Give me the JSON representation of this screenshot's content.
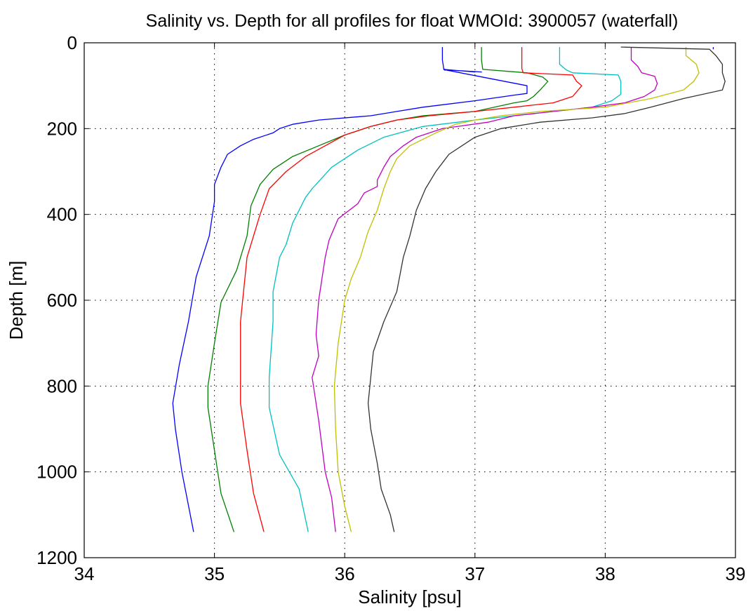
{
  "chart_data": {
    "type": "line",
    "title": "Salinity vs. Depth for all profiles for float WMOId: 3900057 (waterfall)",
    "xlabel": "Salinity [psu]",
    "ylabel": "Depth [m]",
    "xlim": [
      34,
      39
    ],
    "ylim": [
      0,
      1200
    ],
    "y_reversed": true,
    "grid": true,
    "xticks": [
      34,
      35,
      36,
      37,
      38,
      39
    ],
    "yticks": [
      0,
      200,
      400,
      600,
      800,
      1000,
      1200
    ],
    "series": [
      {
        "color": "#0000ff",
        "points": [
          [
            36.75,
            10
          ],
          [
            36.75,
            40
          ],
          [
            36.76,
            60
          ],
          [
            36.76,
            60
          ],
          [
            36.76,
            60
          ],
          [
            36.76,
            60
          ],
          [
            36.76,
            62
          ],
          [
            36.76,
            62
          ],
          [
            36.76,
            62
          ],
          [
            36.76,
            62
          ],
          [
            36.77,
            64
          ],
          [
            36.77,
            64
          ],
          [
            36.76,
            60
          ],
          [
            36.76,
            60
          ],
          [
            36.76,
            62
          ],
          [
            37.0,
            68
          ],
          [
            37.0,
            67
          ],
          [
            37.05,
            68
          ],
          [
            37.05,
            68
          ],
          [
            37.05,
            68
          ],
          [
            36.77,
            63
          ],
          [
            37.4,
            100
          ],
          [
            37.4,
            118
          ],
          [
            37.3,
            122
          ],
          [
            37.0,
            135
          ],
          [
            36.6,
            150
          ],
          [
            36.4,
            160
          ],
          [
            36.2,
            170
          ],
          [
            35.8,
            180
          ],
          [
            35.6,
            190
          ],
          [
            35.5,
            200
          ],
          [
            35.45,
            210
          ],
          [
            35.3,
            225
          ],
          [
            35.2,
            240
          ],
          [
            35.1,
            260
          ],
          [
            35.05,
            290
          ],
          [
            35.0,
            330
          ],
          [
            35.0,
            370
          ],
          [
            34.96,
            450
          ],
          [
            34.86,
            545
          ],
          [
            34.8,
            650
          ],
          [
            34.73,
            750
          ],
          [
            34.68,
            840
          ],
          [
            34.7,
            900
          ],
          [
            34.75,
            1000
          ],
          [
            34.84,
            1140
          ]
        ]
      },
      {
        "color": "#008000",
        "points": [
          [
            37.05,
            10
          ],
          [
            37.05,
            40
          ],
          [
            37.06,
            62
          ],
          [
            37.4,
            70
          ],
          [
            37.52,
            80
          ],
          [
            37.56,
            90
          ],
          [
            37.5,
            110
          ],
          [
            37.45,
            125
          ],
          [
            37.4,
            135
          ],
          [
            37.3,
            140
          ],
          [
            37.15,
            150
          ],
          [
            37.0,
            160
          ],
          [
            36.6,
            170
          ],
          [
            36.4,
            180
          ],
          [
            36.2,
            195
          ],
          [
            36.0,
            215
          ],
          [
            35.8,
            240
          ],
          [
            35.6,
            265
          ],
          [
            35.45,
            295
          ],
          [
            35.35,
            330
          ],
          [
            35.28,
            380
          ],
          [
            35.25,
            450
          ],
          [
            35.17,
            530
          ],
          [
            35.05,
            605
          ],
          [
            35.0,
            700
          ],
          [
            34.95,
            800
          ],
          [
            34.95,
            850
          ],
          [
            35.0,
            950
          ],
          [
            35.05,
            1050
          ],
          [
            35.15,
            1140
          ]
        ]
      },
      {
        "color": "#ff0000",
        "points": [
          [
            37.36,
            10
          ],
          [
            37.36,
            60
          ],
          [
            37.37,
            70
          ],
          [
            37.75,
            75
          ],
          [
            37.78,
            90
          ],
          [
            37.82,
            100
          ],
          [
            37.75,
            125
          ],
          [
            37.6,
            140
          ],
          [
            37.3,
            150
          ],
          [
            37.0,
            160
          ],
          [
            36.65,
            170
          ],
          [
            36.4,
            180
          ],
          [
            36.2,
            195
          ],
          [
            36.0,
            215
          ],
          [
            35.85,
            240
          ],
          [
            35.7,
            265
          ],
          [
            35.55,
            300
          ],
          [
            35.42,
            340
          ],
          [
            35.35,
            400
          ],
          [
            35.3,
            450
          ],
          [
            35.25,
            500
          ],
          [
            35.2,
            650
          ],
          [
            35.2,
            720
          ],
          [
            35.2,
            840
          ],
          [
            35.25,
            950
          ],
          [
            35.3,
            1050
          ],
          [
            35.38,
            1140
          ]
        ]
      },
      {
        "color": "#00c0c0",
        "points": [
          [
            37.65,
            10
          ],
          [
            37.65,
            50
          ],
          [
            37.7,
            63
          ],
          [
            37.75,
            70
          ],
          [
            38.1,
            75
          ],
          [
            38.12,
            90
          ],
          [
            38.12,
            120
          ],
          [
            38.05,
            135
          ],
          [
            37.9,
            150
          ],
          [
            37.6,
            160
          ],
          [
            37.3,
            170
          ],
          [
            37.0,
            180
          ],
          [
            36.6,
            195
          ],
          [
            36.3,
            220
          ],
          [
            36.1,
            250
          ],
          [
            35.9,
            290
          ],
          [
            35.75,
            340
          ],
          [
            35.7,
            360
          ],
          [
            35.6,
            420
          ],
          [
            35.55,
            470
          ],
          [
            35.5,
            500
          ],
          [
            35.45,
            580
          ],
          [
            35.45,
            650
          ],
          [
            35.42,
            780
          ],
          [
            35.42,
            850
          ],
          [
            35.5,
            960
          ],
          [
            35.65,
            1040
          ],
          [
            35.72,
            1140
          ]
        ]
      },
      {
        "color": "#c000c0",
        "points": [
          [
            38.2,
            10
          ],
          [
            38.2,
            40
          ],
          [
            38.25,
            55
          ],
          [
            38.28,
            70
          ],
          [
            38.38,
            78
          ],
          [
            38.4,
            95
          ],
          [
            38.38,
            110
          ],
          [
            38.3,
            125
          ],
          [
            38.15,
            140
          ],
          [
            37.9,
            150
          ],
          [
            37.6,
            160
          ],
          [
            37.3,
            170
          ],
          [
            37.1,
            185
          ],
          [
            36.75,
            200
          ],
          [
            36.55,
            220
          ],
          [
            36.45,
            240
          ],
          [
            36.35,
            265
          ],
          [
            36.3,
            290
          ],
          [
            36.25,
            320
          ],
          [
            36.25,
            335
          ],
          [
            36.15,
            350
          ],
          [
            36.1,
            375
          ],
          [
            35.95,
            410
          ],
          [
            35.88,
            460
          ],
          [
            35.85,
            500
          ],
          [
            35.8,
            600
          ],
          [
            35.78,
            680
          ],
          [
            35.8,
            730
          ],
          [
            35.75,
            780
          ],
          [
            35.8,
            880
          ],
          [
            35.85,
            1000
          ],
          [
            35.9,
            1060
          ],
          [
            35.93,
            1140
          ]
        ]
      },
      {
        "color": "#c0c000",
        "points": [
          [
            38.62,
            10
          ],
          [
            38.62,
            30
          ],
          [
            38.7,
            50
          ],
          [
            38.72,
            70
          ],
          [
            38.68,
            90
          ],
          [
            38.6,
            110
          ],
          [
            38.35,
            130
          ],
          [
            38.0,
            150
          ],
          [
            37.5,
            160
          ],
          [
            37.2,
            170
          ],
          [
            37.0,
            180
          ],
          [
            36.85,
            190
          ],
          [
            36.7,
            210
          ],
          [
            36.5,
            240
          ],
          [
            36.4,
            270
          ],
          [
            36.35,
            300
          ],
          [
            36.3,
            340
          ],
          [
            36.25,
            390
          ],
          [
            36.18,
            440
          ],
          [
            36.12,
            500
          ],
          [
            36.05,
            550
          ],
          [
            36.0,
            600
          ],
          [
            35.95,
            700
          ],
          [
            35.92,
            800
          ],
          [
            35.93,
            900
          ],
          [
            35.95,
            1000
          ],
          [
            36.0,
            1080
          ],
          [
            36.05,
            1140
          ]
        ]
      },
      {
        "color": "#333333",
        "points": [
          [
            38.12,
            10
          ],
          [
            38.8,
            15
          ],
          [
            38.85,
            30
          ],
          [
            38.9,
            50
          ],
          [
            38.9,
            70
          ],
          [
            38.92,
            90
          ],
          [
            38.9,
            110
          ],
          [
            38.6,
            130
          ],
          [
            38.35,
            150
          ],
          [
            38.15,
            165
          ],
          [
            37.9,
            175
          ],
          [
            37.5,
            185
          ],
          [
            37.2,
            200
          ],
          [
            37.0,
            220
          ],
          [
            36.8,
            260
          ],
          [
            36.7,
            300
          ],
          [
            36.62,
            340
          ],
          [
            36.55,
            390
          ],
          [
            36.5,
            450
          ],
          [
            36.45,
            500
          ],
          [
            36.4,
            580
          ],
          [
            36.3,
            650
          ],
          [
            36.22,
            720
          ],
          [
            36.2,
            780
          ],
          [
            36.18,
            840
          ],
          [
            36.2,
            900
          ],
          [
            36.25,
            980
          ],
          [
            36.28,
            1040
          ],
          [
            36.35,
            1100
          ],
          [
            36.38,
            1140
          ]
        ]
      },
      {
        "color": "#0000ff",
        "points": [
          [
            38.83,
            10
          ],
          [
            38.83,
            15
          ]
        ]
      }
    ]
  }
}
